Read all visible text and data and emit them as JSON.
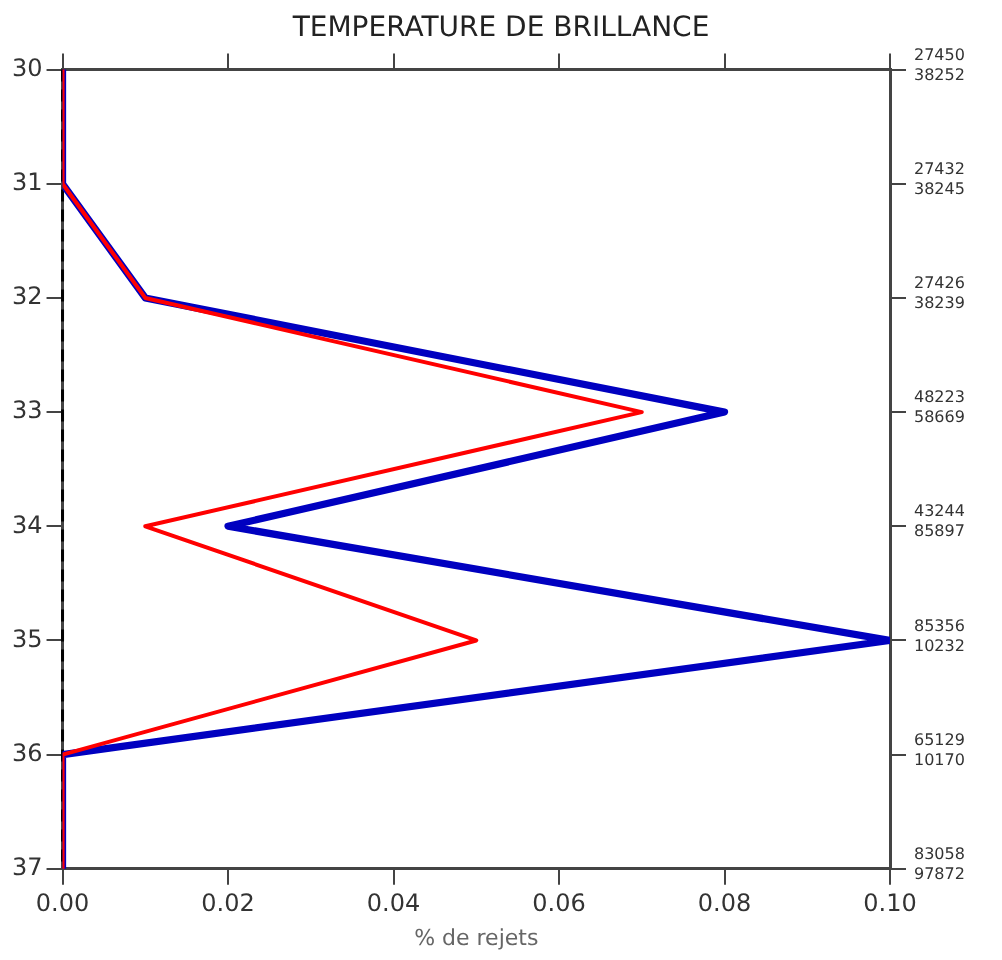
{
  "chart_data": {
    "type": "line",
    "title": "TEMPERATURE DE BRILLANCE",
    "xlabel": "% de rejets",
    "orientation": "horizontal",
    "x": [
      30,
      31,
      32,
      33,
      34,
      35,
      36,
      37
    ],
    "series": [
      {
        "color": "#0000c0",
        "values": [
          0,
          0,
          0.01,
          0.08,
          0.02,
          0.1,
          0,
          0
        ]
      },
      {
        "color": "#ff0000",
        "values": [
          0,
          0,
          0.01,
          0.07,
          0.01,
          0.05,
          0,
          0
        ]
      }
    ],
    "xlim": [
      0,
      0.1
    ],
    "xticks": [
      {
        "value": 0,
        "label": "0.00"
      },
      {
        "value": 0.02,
        "label": "0.02"
      },
      {
        "value": 0.04,
        "label": "0.04"
      },
      {
        "value": 0.06,
        "label": "0.06"
      },
      {
        "value": 0.08,
        "label": "0.08"
      },
      {
        "value": 0.1,
        "label": "0.10"
      }
    ],
    "ylim": [
      37,
      30
    ],
    "yticks": [
      30,
      31,
      32,
      33,
      34,
      35,
      36,
      37
    ],
    "annotations": [
      "27450\n38252",
      "27432\n38245",
      "27426\n38239",
      "48223\n58669",
      "43244\n85897",
      "85356\n10232",
      "65129\n10170",
      "83058\n97872"
    ],
    "ref_lines": [
      {
        "axis": "x",
        "value": 0,
        "color": "#000000",
        "line_style": "dashed"
      }
    ],
    "grid": false,
    "legend": false,
    "marker": "none",
    "line_style": "solid"
  }
}
